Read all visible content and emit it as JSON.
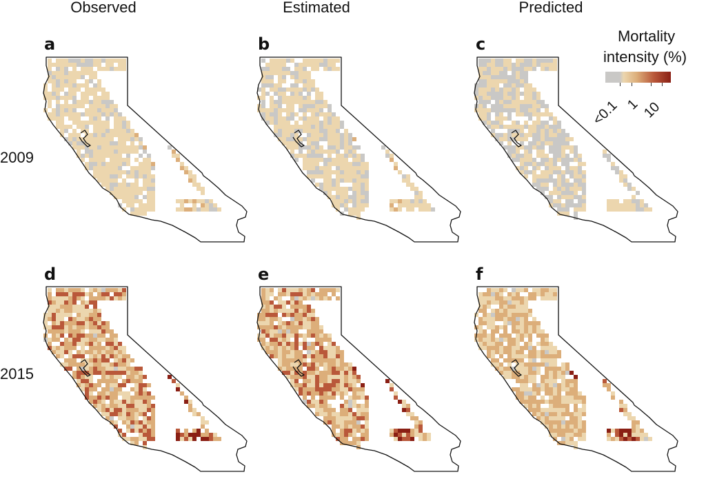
{
  "columns": [
    "Observed",
    "Estimated",
    "Predicted"
  ],
  "rows": [
    "2009",
    "2015"
  ],
  "panels": [
    "a",
    "b",
    "c",
    "d",
    "e",
    "f"
  ],
  "legend": {
    "title_line1": "Mortality",
    "title_line2": "intensity (%)",
    "ticks": [
      "<0.1",
      "1",
      "10"
    ]
  },
  "colors": {
    "no_data": "#c9c8c6",
    "low": "#ecd6ae",
    "mid": "#dcae7a",
    "high": "#b9583a",
    "max": "#8a1f14",
    "outline": "#111111"
  },
  "panel_intensity": {
    "a": 0.18,
    "b": 0.12,
    "c": 0.08,
    "d": 0.62,
    "e": 0.55,
    "f": 0.45
  }
}
